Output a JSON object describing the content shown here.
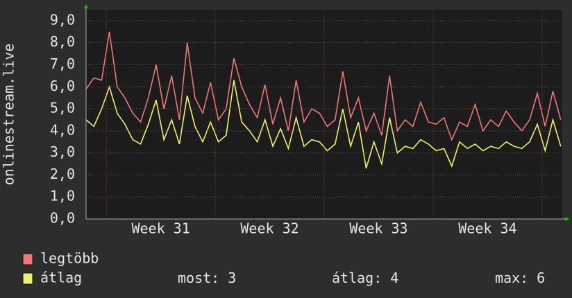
{
  "chart_data": {
    "type": "line",
    "ylabel": "onlinestream.live",
    "x": [
      0,
      0.5,
      1,
      1.5,
      2,
      2.5,
      3,
      3.5,
      4,
      4.5,
      5,
      5.5,
      6,
      6.5,
      7,
      7.5,
      8,
      8.5,
      9,
      9.5,
      10,
      10.5,
      11,
      11.5,
      12,
      12.5,
      13,
      13.5,
      14,
      14.5,
      15,
      15.5,
      16,
      16.5,
      17,
      17.5,
      18,
      18.5,
      19,
      19.5,
      20,
      20.5,
      21,
      21.5,
      22,
      22.5,
      23,
      23.5,
      24,
      24.5,
      25,
      25.5,
      26,
      26.5,
      27,
      27.5,
      28,
      28.5,
      29,
      29.5,
      30,
      30.5
    ],
    "series": [
      {
        "name": "legtöbb",
        "color": "#f07878",
        "values": [
          5.9,
          6.4,
          6.3,
          8.5,
          6.0,
          5.5,
          4.8,
          4.4,
          5.5,
          7.0,
          5.0,
          6.5,
          4.5,
          8.0,
          5.5,
          4.8,
          6.2,
          4.5,
          5.0,
          7.3,
          6.0,
          5.2,
          4.6,
          6.1,
          4.3,
          5.5,
          4.0,
          6.3,
          4.4,
          5.0,
          4.8,
          4.2,
          4.5,
          6.7,
          4.6,
          5.5,
          4.0,
          4.8,
          3.8,
          6.5,
          4.0,
          4.5,
          4.2,
          5.3,
          4.4,
          4.3,
          4.6,
          3.6,
          4.4,
          4.2,
          5.2,
          4.0,
          4.5,
          4.2,
          4.9,
          4.4,
          4.0,
          4.5,
          5.7,
          4.2,
          5.8,
          4.5
        ]
      },
      {
        "name": "átlag",
        "color": "#f0f070",
        "values": [
          4.5,
          4.2,
          5.0,
          6.0,
          4.8,
          4.3,
          3.6,
          3.4,
          4.3,
          5.4,
          3.6,
          4.5,
          3.4,
          5.6,
          4.2,
          3.5,
          4.4,
          3.5,
          3.8,
          6.3,
          4.4,
          4.0,
          3.5,
          4.5,
          3.3,
          4.1,
          3.2,
          4.6,
          3.3,
          3.6,
          3.5,
          3.1,
          3.4,
          5.0,
          3.3,
          4.4,
          2.3,
          3.5,
          2.5,
          4.6,
          3.0,
          3.3,
          3.2,
          3.6,
          3.4,
          3.1,
          3.2,
          2.4,
          3.5,
          3.2,
          3.4,
          3.1,
          3.3,
          3.2,
          3.5,
          3.3,
          3.2,
          3.5,
          4.3,
          3.1,
          4.5,
          3.3
        ]
      }
    ],
    "xlim": [
      0,
      30.6
    ],
    "xticks": [
      {
        "value": 4.8,
        "label": "Week 31"
      },
      {
        "value": 11.8,
        "label": "Week 32"
      },
      {
        "value": 18.8,
        "label": "Week 33"
      },
      {
        "value": 25.8,
        "label": "Week 34"
      }
    ],
    "xgrid": [
      1.3,
      8.3,
      15.3,
      22.3,
      29.3
    ],
    "ylim": [
      0,
      9.5
    ],
    "yticks": [
      {
        "value": 0,
        "label": "0,0"
      },
      {
        "value": 1,
        "label": "1,0"
      },
      {
        "value": 2,
        "label": "2,0"
      },
      {
        "value": 3,
        "label": "3,0"
      },
      {
        "value": 4,
        "label": "4,0"
      },
      {
        "value": 5,
        "label": "5,0"
      },
      {
        "value": 6,
        "label": "6,0"
      },
      {
        "value": 7,
        "label": "7,0"
      },
      {
        "value": 8,
        "label": "8,0"
      },
      {
        "value": 9,
        "label": "9,0"
      }
    ],
    "grid": true,
    "stats": [
      {
        "label": "most:",
        "value": 3
      },
      {
        "label": "átlag:",
        "value": 4
      },
      {
        "label": "max:",
        "value": 6
      }
    ]
  }
}
